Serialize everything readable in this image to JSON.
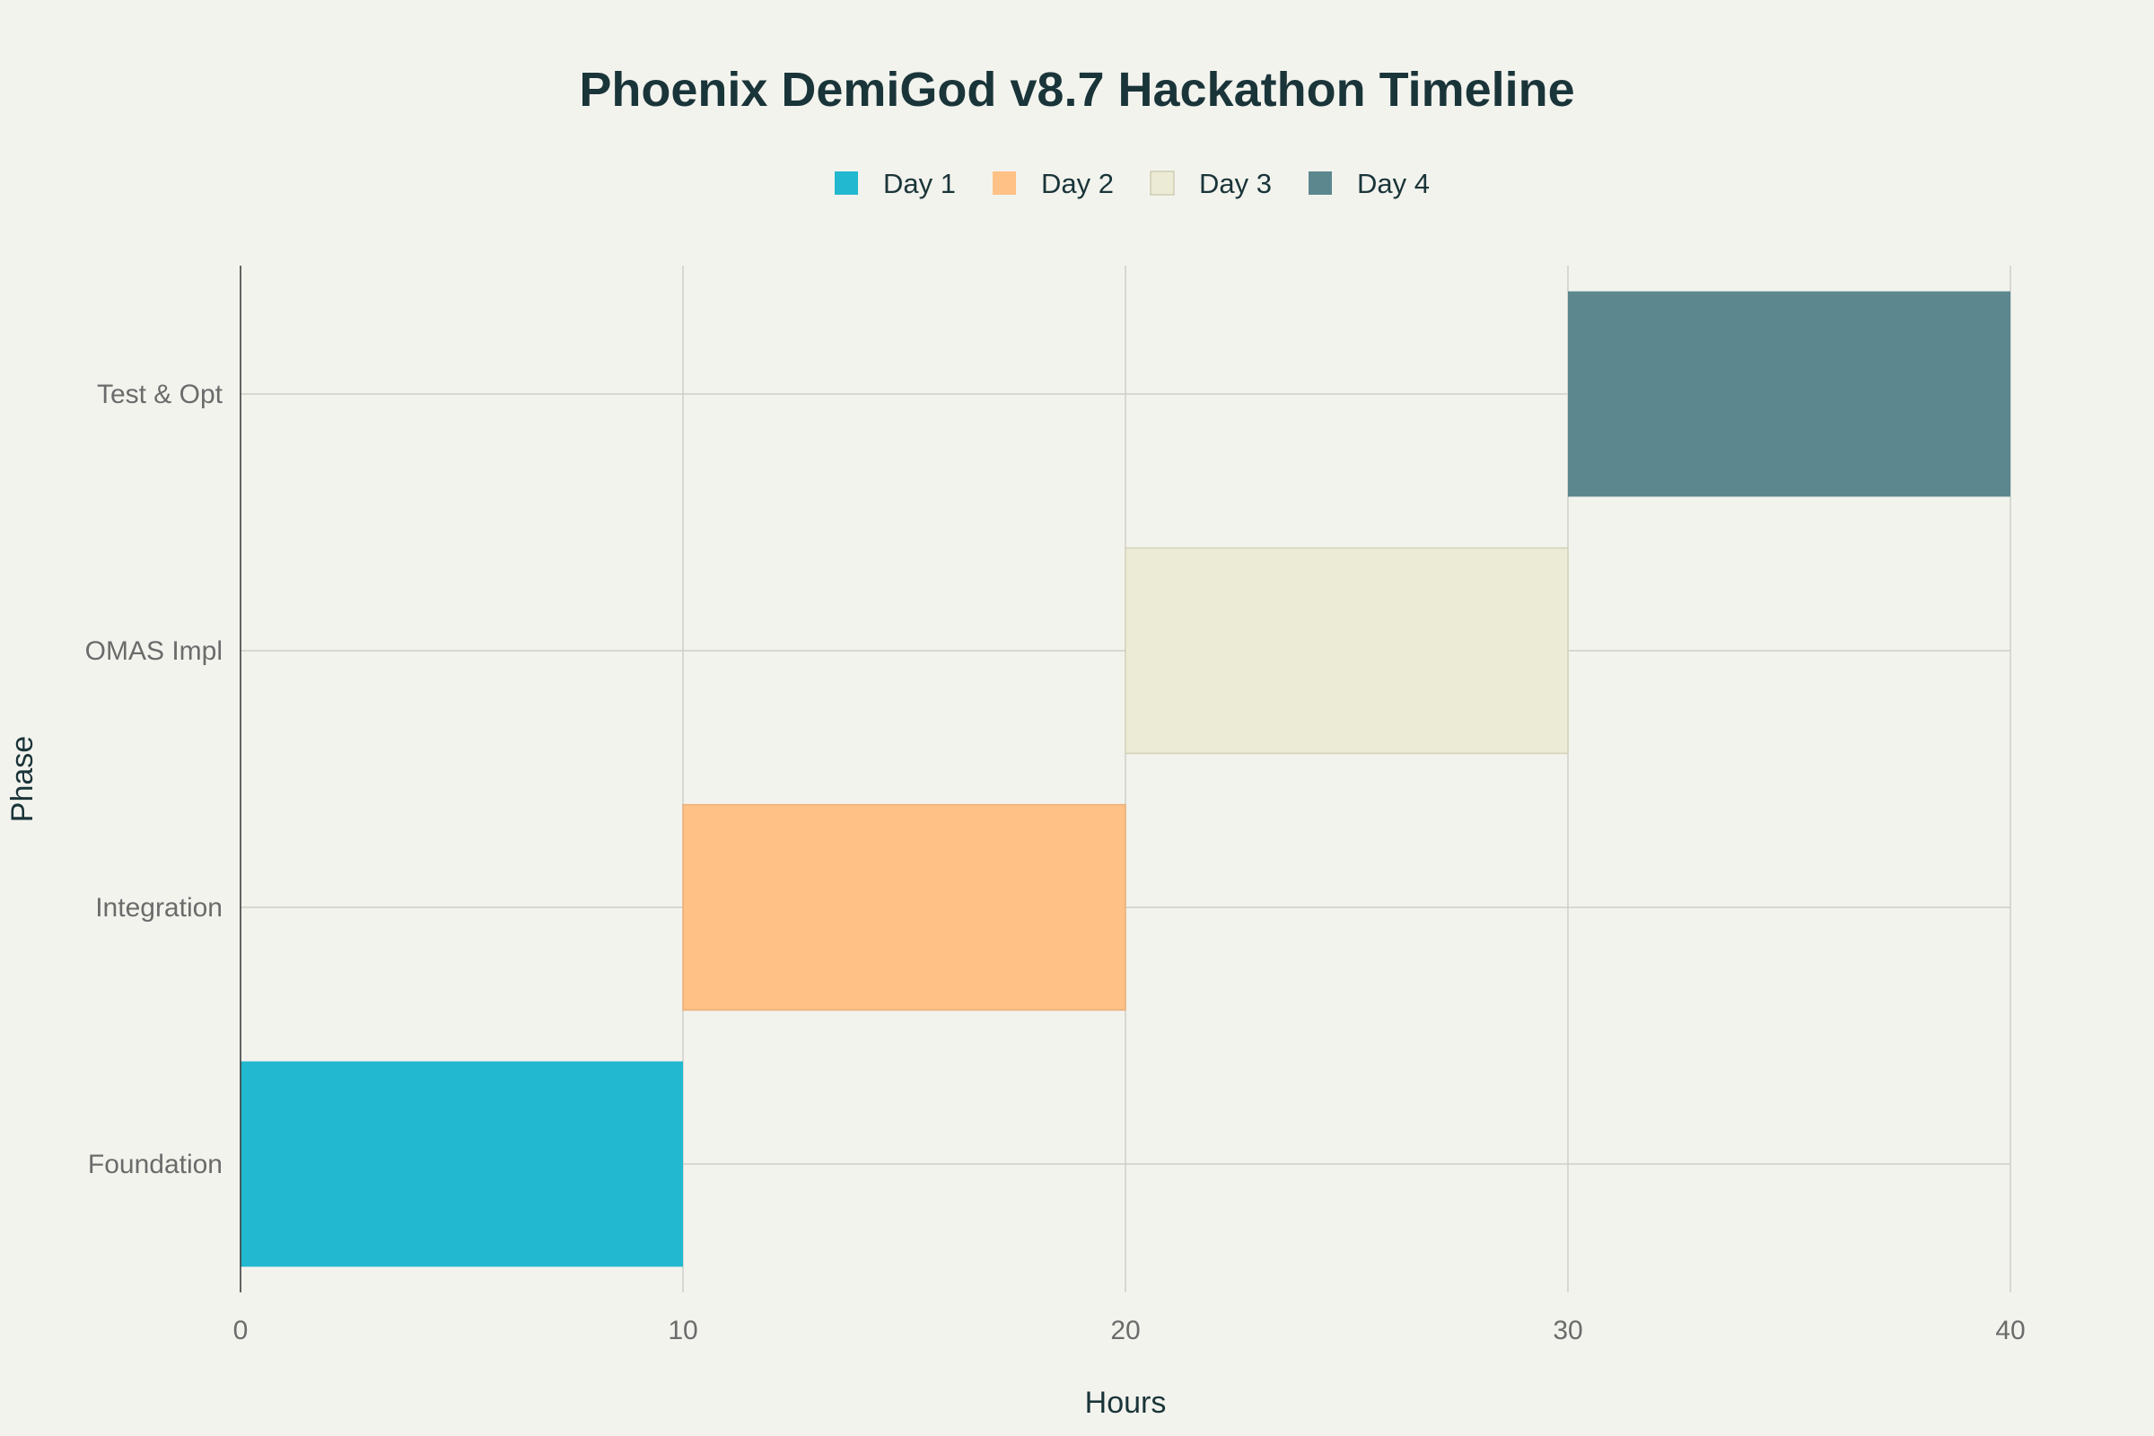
{
  "chart_data": {
    "type": "bar",
    "orientation": "horizontal",
    "title": "Phoenix DemiGod v8.7 Hackathon Timeline",
    "xlabel": "Hours",
    "ylabel": "Phase",
    "xlim": [
      0,
      40
    ],
    "x_ticks": [
      "0",
      "10",
      "20",
      "30",
      "40"
    ],
    "categories": [
      "Foundation",
      "Integration",
      "OMAS Impl",
      "Test & Opt"
    ],
    "series": [
      {
        "name": "Day 1",
        "color": "#22b8cf",
        "category": "Foundation",
        "start": 0,
        "end": 10
      },
      {
        "name": "Day 2",
        "color": "#ffc185",
        "category": "Integration",
        "start": 10,
        "end": 20
      },
      {
        "name": "Day 3",
        "color": "#ecebd5",
        "category": "OMAS Impl",
        "start": 20,
        "end": 30
      },
      {
        "name": "Day 4",
        "color": "#5d878f",
        "category": "Test & Opt",
        "start": 30,
        "end": 40
      }
    ],
    "legend": {
      "placement": "top-center",
      "orientation": "horizontal"
    },
    "grid": true
  }
}
